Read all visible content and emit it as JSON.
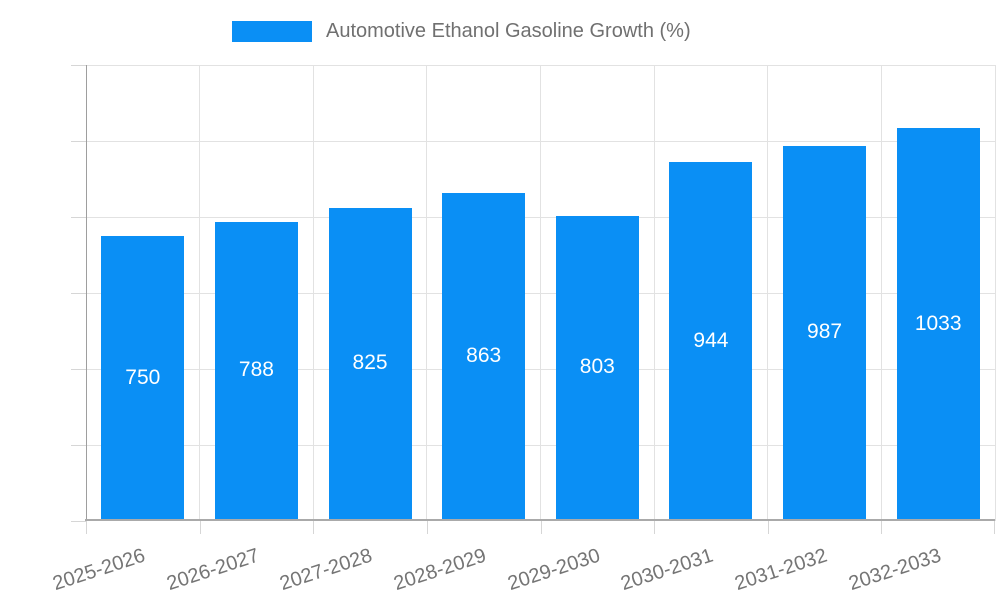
{
  "legend": {
    "label": "Automotive Ethanol Gasoline Growth (%)"
  },
  "chart_data": {
    "type": "bar",
    "title": "Automotive Ethanol Gasoline Growth (%)",
    "series_name": "Automotive Ethanol Gasoline Growth (%)",
    "categories": [
      "2025-2026",
      "2026-2027",
      "2027-2028",
      "2028-2029",
      "2029-2030",
      "2030-2031",
      "2031-2032",
      "2032-2033"
    ],
    "values": [
      750,
      788,
      825,
      863,
      803,
      944,
      987,
      1033
    ],
    "bar_labels": [
      "750",
      "788",
      "825",
      "863",
      "803",
      "944",
      "987",
      "1033"
    ],
    "xlabel": "",
    "ylabel": "",
    "ylim": [
      0,
      1200
    ],
    "y_ticks": [
      0,
      200,
      400,
      600,
      800,
      1000,
      1200
    ],
    "grid": true,
    "legend_position": "top",
    "colors": {
      "bar": "#0a8ff5",
      "bar_label_text": "#ffffff",
      "axis_text": "#757575",
      "legend_text": "#707070",
      "gridline": "#e2e2e2",
      "axis_line": "#9e9e9e",
      "background": "#ffffff"
    }
  }
}
